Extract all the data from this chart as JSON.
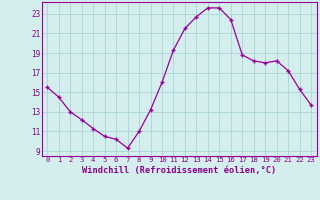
{
  "x": [
    0,
    1,
    2,
    3,
    4,
    5,
    6,
    7,
    8,
    9,
    10,
    11,
    12,
    13,
    14,
    15,
    16,
    17,
    18,
    19,
    20,
    21,
    22,
    23
  ],
  "y": [
    15.5,
    14.5,
    13.0,
    12.2,
    11.3,
    10.5,
    10.2,
    9.3,
    11.0,
    13.2,
    16.0,
    19.3,
    21.5,
    22.7,
    23.6,
    23.6,
    22.4,
    18.8,
    18.2,
    18.0,
    18.2,
    17.2,
    15.3,
    13.7
  ],
  "line_color": "#990099",
  "marker": "+",
  "bg_color": "#d4eeee",
  "grid_color": "#b0d8d8",
  "tick_color": "#880088",
  "label_color": "#880088",
  "xlabel": "Windchill (Refroidissement éolien,°C)",
  "xlim": [
    -0.5,
    23.5
  ],
  "ylim": [
    8.5,
    24.2
  ],
  "yticks": [
    9,
    11,
    13,
    15,
    17,
    19,
    21,
    23
  ],
  "xticks": [
    0,
    1,
    2,
    3,
    4,
    5,
    6,
    7,
    8,
    9,
    10,
    11,
    12,
    13,
    14,
    15,
    16,
    17,
    18,
    19,
    20,
    21,
    22,
    23
  ],
  "xtick_labels": [
    "0",
    "1",
    "2",
    "3",
    "4",
    "5",
    "6",
    "7",
    "8",
    "9",
    "10",
    "11",
    "12",
    "13",
    "14",
    "15",
    "16",
    "17",
    "18",
    "19",
    "20",
    "21",
    "22",
    "23"
  ]
}
